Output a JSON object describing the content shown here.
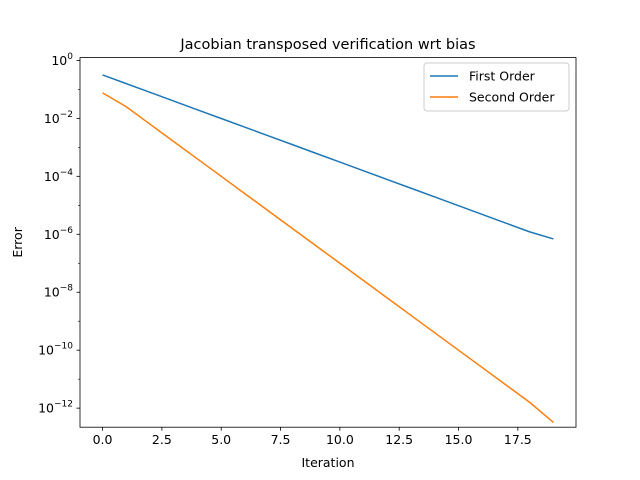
{
  "chart_data": {
    "type": "line",
    "title": "Jacobian transposed verification wrt bias",
    "xlabel": "Iteration",
    "ylabel": "Error",
    "yscale": "log",
    "xlim": [
      -0.95,
      19.95
    ],
    "ylim": [
      2.2e-13,
      1.25
    ],
    "xticks": [
      0,
      2.5,
      5,
      7.5,
      10,
      12.5,
      15,
      17.5
    ],
    "xtick_labels": [
      "0.0",
      "2.5",
      "5.0",
      "7.5",
      "10.0",
      "12.5",
      "15.0",
      "17.5"
    ],
    "yticks": [
      1,
      0.01,
      0.0001,
      1e-06,
      1e-08,
      1e-10,
      1e-12
    ],
    "ytick_labels": [
      {
        "base": "10",
        "exp": "0"
      },
      {
        "base": "10",
        "exp": "−2"
      },
      {
        "base": "10",
        "exp": "−4"
      },
      {
        "base": "10",
        "exp": "−6"
      },
      {
        "base": "10",
        "exp": "−8"
      },
      {
        "base": "10",
        "exp": "−10"
      },
      {
        "base": "10",
        "exp": "−12"
      }
    ],
    "grid": false,
    "legend_position": "top-right",
    "x": [
      0,
      1,
      2,
      3,
      4,
      5,
      6,
      7,
      8,
      9,
      10,
      11,
      12,
      13,
      14,
      15,
      16,
      17,
      18,
      19
    ],
    "series": [
      {
        "name": "First Order",
        "color": "#1f77b4",
        "values": [
          0.316,
          0.158,
          0.079,
          0.0396,
          0.0198,
          0.0099,
          0.00496,
          0.00248,
          0.00124,
          0.00062,
          0.00031,
          0.000155,
          7.75e-05,
          3.88e-05,
          1.94e-05,
          9.7e-06,
          4.85e-06,
          2.42e-06,
          1.21e-06,
          6.9e-07
        ]
      },
      {
        "name": "Second Order",
        "color": "#ff7f0e",
        "values": [
          0.076,
          0.0251,
          0.0063,
          0.00158,
          0.000398,
          0.0001,
          2.51e-05,
          6.31e-06,
          1.58e-06,
          3.98e-07,
          1e-07,
          2.51e-08,
          6.31e-09,
          1.58e-09,
          3.98e-10,
          1e-10,
          2.51e-11,
          6.31e-12,
          1.58e-12,
          3.2e-13
        ]
      }
    ]
  }
}
